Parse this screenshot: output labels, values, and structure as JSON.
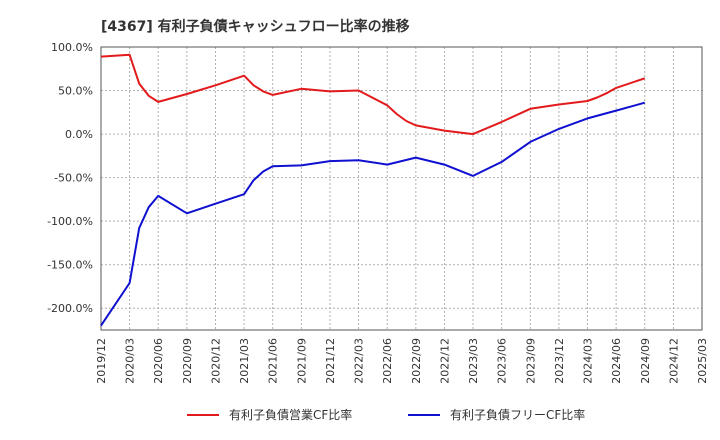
{
  "chart_data": {
    "type": "line",
    "title": "[4367]  有利子負債キャッシュフロー比率の推移",
    "xlabel": "",
    "ylabel": "",
    "ylim": [
      -225,
      100
    ],
    "yticks": [
      100,
      50,
      0,
      -50,
      -100,
      -150,
      -200
    ],
    "ytick_labels": [
      "100.0%",
      "50.0%",
      "0.0%",
      "-50.0%",
      "-100.0%",
      "-150.0%",
      "-200.0%"
    ],
    "xlim": [
      "2019/12",
      "2025/03"
    ],
    "xtick_labels": [
      "2019/12",
      "2020/03",
      "2020/06",
      "2020/09",
      "2020/12",
      "2021/03",
      "2021/06",
      "2021/09",
      "2021/12",
      "2022/03",
      "2022/06",
      "2022/09",
      "2022/12",
      "2023/03",
      "2023/06",
      "2023/09",
      "2023/12",
      "2024/03",
      "2024/06",
      "2024/09",
      "2024/12",
      "2025/03"
    ],
    "grid": true,
    "legend_position": "bottom",
    "series": [
      {
        "name": "有利子負債営業CF比率",
        "color": "#e31a1c",
        "points": [
          [
            "2019/12",
            89
          ],
          [
            "2020/03",
            91
          ],
          [
            "2020/04",
            58
          ],
          [
            "2020/05",
            44
          ],
          [
            "2020/06",
            37
          ],
          [
            "2020/09",
            46
          ],
          [
            "2020/12",
            56
          ],
          [
            "2021/03",
            67
          ],
          [
            "2021/04",
            56
          ],
          [
            "2021/05",
            49
          ],
          [
            "2021/06",
            45
          ],
          [
            "2021/09",
            52
          ],
          [
            "2021/12",
            49
          ],
          [
            "2022/03",
            50
          ],
          [
            "2022/06",
            33
          ],
          [
            "2022/07",
            23
          ],
          [
            "2022/08",
            15
          ],
          [
            "2022/09",
            10
          ],
          [
            "2022/12",
            4
          ],
          [
            "2023/03",
            0
          ],
          [
            "2023/06",
            14
          ],
          [
            "2023/09",
            29
          ],
          [
            "2023/12",
            34
          ],
          [
            "2024/03",
            38
          ],
          [
            "2024/04",
            42
          ],
          [
            "2024/05",
            47
          ],
          [
            "2024/06",
            53
          ],
          [
            "2024/09",
            64
          ]
        ]
      },
      {
        "name": "有利子負債フリーCF比率",
        "color": "#1010d0",
        "points": [
          [
            "2019/12",
            -220
          ],
          [
            "2020/03",
            -171
          ],
          [
            "2020/04",
            -108
          ],
          [
            "2020/05",
            -84
          ],
          [
            "2020/06",
            -71
          ],
          [
            "2020/09",
            -91
          ],
          [
            "2020/12",
            -80
          ],
          [
            "2021/03",
            -69
          ],
          [
            "2021/04",
            -53
          ],
          [
            "2021/05",
            -43
          ],
          [
            "2021/06",
            -37
          ],
          [
            "2021/09",
            -36
          ],
          [
            "2021/12",
            -31
          ],
          [
            "2022/03",
            -30
          ],
          [
            "2022/06",
            -35
          ],
          [
            "2022/09",
            -27
          ],
          [
            "2022/12",
            -35
          ],
          [
            "2023/03",
            -48
          ],
          [
            "2023/06",
            -32
          ],
          [
            "2023/09",
            -9
          ],
          [
            "2023/12",
            6
          ],
          [
            "2024/03",
            18
          ],
          [
            "2024/06",
            27
          ],
          [
            "2024/09",
            36
          ]
        ]
      }
    ]
  }
}
